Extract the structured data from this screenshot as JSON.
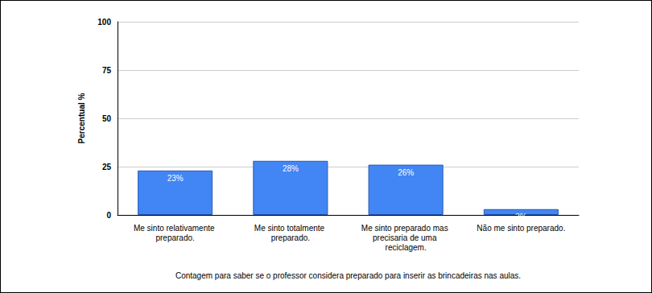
{
  "chart_data": {
    "type": "bar",
    "categories": [
      "Me sinto relativamente preparado.",
      "Me sinto totalmente preparado.",
      "Me sinto preparado mas precisaria de uma reciclagem.",
      "Não me sinto preparado."
    ],
    "values": [
      23,
      28,
      26,
      3
    ],
    "value_labels": [
      "23%",
      "28%",
      "26%",
      "3%"
    ],
    "data_labels": true,
    "color": "#4285f4",
    "xlabel": "Contagem para saber se o professor considera preparado para inserir as brincadeiras nas aulas.",
    "ylabel": "Percentual %",
    "ylim": [
      0,
      100
    ],
    "yticks": [
      0,
      25,
      50,
      75,
      100
    ],
    "grid": true
  }
}
